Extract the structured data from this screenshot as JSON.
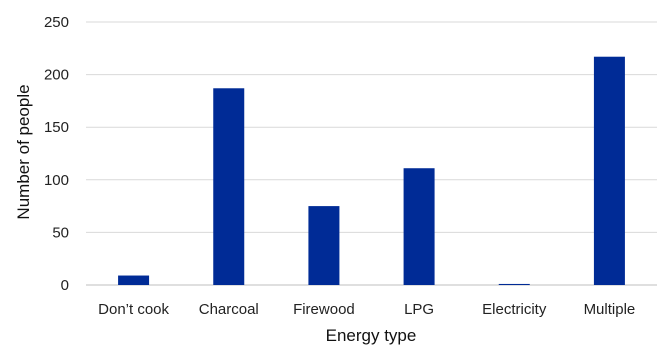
{
  "chart_data": {
    "type": "bar",
    "categories": [
      "Don’t cook",
      "Charcoal",
      "Firewood",
      "LPG",
      "Electricity",
      "Multiple"
    ],
    "values": [
      9,
      187,
      75,
      111,
      1,
      217
    ],
    "xlabel": "Energy type",
    "ylabel": "Number of people",
    "ylim": [
      0,
      250
    ],
    "yticks": [
      0,
      50,
      100,
      150,
      200,
      250
    ],
    "grid": true,
    "bar_color": "#002b96"
  }
}
